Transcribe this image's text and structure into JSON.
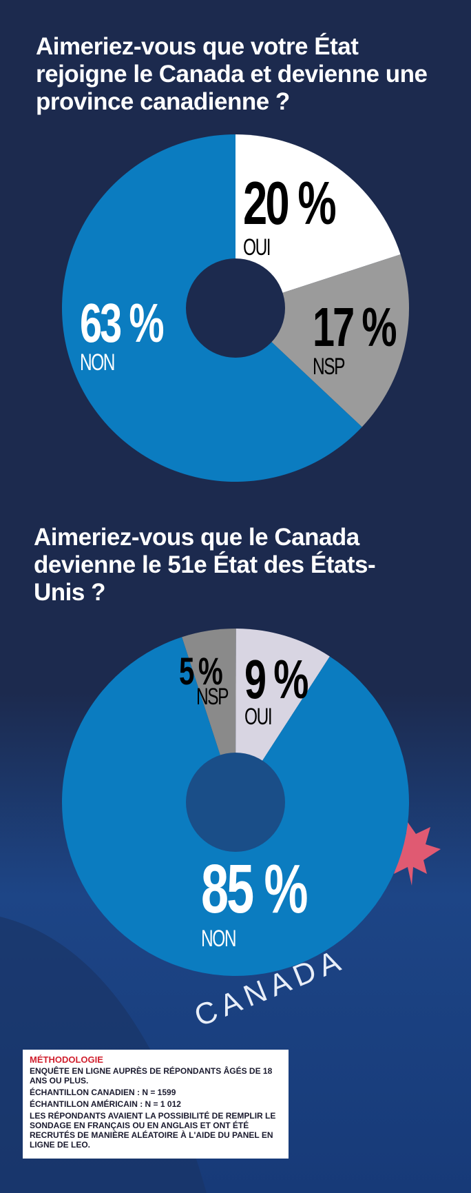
{
  "chart_data": [
    {
      "type": "pie",
      "title": "Aimeriez-vous que votre État rejoigne le Canada et devienne une province canadienne ?",
      "categories": [
        "OUI",
        "NSP",
        "NON"
      ],
      "values": [
        20,
        17,
        63
      ],
      "value_labels": [
        "20 %",
        "17 %",
        "63 %"
      ],
      "colors": [
        "#ffffff",
        "#9b9b9b",
        "#0b7cc0"
      ]
    },
    {
      "type": "pie",
      "title": "Aimeriez-vous que le Canada devienne le 51e État des États-Unis ?",
      "categories": [
        "NSP",
        "OUI",
        "NON"
      ],
      "values": [
        5,
        9,
        85
      ],
      "value_labels": [
        "5 %",
        "9 %",
        "85 %"
      ],
      "colors": [
        "#8a8a8a",
        "#d8d5e2",
        "#0b7cc0"
      ]
    }
  ],
  "background_text": "CANADA",
  "methodology": {
    "title": "MÉTHODOLOGIE",
    "lines": [
      "ENQUÊTE EN LIGNE AUPRÈS DE RÉPONDANTS ÂGÉS DE 18 ANS OU PLUS.",
      "ÉCHANTILLON CANADIEN : N = 1599",
      "ÉCHANTILLON AMÉRICAIN : N = 1 012",
      "LES RÉPONDANTS AVAIENT LA POSSIBILITÉ DE REMPLIR LE SONDAGE EN FRANÇAIS OU EN ANGLAIS ET ONT ÉTÉ RECRUTÉS DE MANIÈRE ALÉATOIRE À L'AIDE DU PANEL EN LIGNE DE LEO."
    ]
  }
}
